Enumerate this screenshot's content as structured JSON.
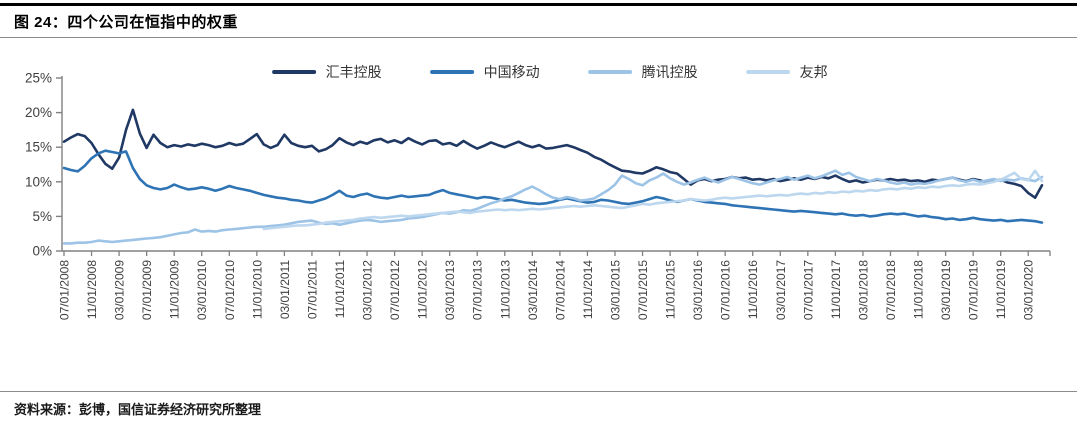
{
  "header": {
    "title": "图 24：四个公司在恒指中的权重"
  },
  "footer": {
    "source": "资料来源：彭博，国信证券经济研究所整理"
  },
  "chart_data": {
    "type": "line",
    "title": "四个公司在恒指中的权重",
    "xlabel": "",
    "ylabel": "",
    "ylim": [
      0,
      25
    ],
    "yticks": [
      0,
      5,
      10,
      15,
      20,
      25
    ],
    "ytick_labels": [
      "0%",
      "5%",
      "10%",
      "15%",
      "20%",
      "25%"
    ],
    "grid": false,
    "legend_position": "top",
    "x_frequency": "monthly",
    "x_range": [
      "07/01/2008",
      "05/01/2020"
    ],
    "x_tick_labels": [
      "07/01/2008",
      "11/01/2008",
      "03/01/2009",
      "07/01/2009",
      "11/01/2009",
      "03/01/2010",
      "07/01/2010",
      "11/01/2010",
      "03/01/2011",
      "07/01/2011",
      "11/01/2011",
      "03/01/2012",
      "07/01/2012",
      "11/01/2012",
      "03/01/2013",
      "07/01/2013",
      "11/01/2013",
      "03/01/2014",
      "07/01/2014",
      "11/01/2014",
      "03/01/2015",
      "07/01/2015",
      "11/01/2015",
      "03/01/2016",
      "07/01/2016",
      "11/01/2016",
      "03/01/2017",
      "07/01/2017",
      "11/01/2017",
      "03/01/2018",
      "07/01/2018",
      "11/01/2018",
      "03/01/2019",
      "07/01/2019",
      "11/01/2019",
      "03/01/2020"
    ],
    "x_tick_every_n_points": 4,
    "axis_color": "#808080",
    "label_color": "#404040",
    "series": [
      {
        "name": "汇丰控股",
        "color": "#1F3864",
        "values": [
          15.8,
          16.4,
          16.9,
          16.6,
          15.6,
          14.0,
          12.6,
          11.9,
          13.5,
          17.5,
          20.4,
          17.0,
          14.9,
          16.8,
          15.6,
          15.0,
          15.3,
          15.1,
          15.4,
          15.2,
          15.5,
          15.3,
          15.0,
          15.2,
          15.6,
          15.3,
          15.5,
          16.2,
          16.9,
          15.4,
          14.9,
          15.3,
          16.8,
          15.6,
          15.2,
          15.0,
          15.2,
          14.4,
          14.7,
          15.3,
          16.3,
          15.7,
          15.3,
          15.8,
          15.5,
          16.0,
          16.2,
          15.7,
          16.0,
          15.6,
          16.3,
          15.8,
          15.4,
          15.9,
          16.0,
          15.4,
          15.6,
          15.2,
          15.9,
          15.3,
          14.8,
          15.2,
          15.7,
          15.3,
          15.0,
          15.4,
          15.8,
          15.3,
          15.0,
          15.3,
          14.8,
          14.9,
          15.1,
          15.3,
          15.0,
          14.6,
          14.2,
          13.6,
          13.2,
          12.6,
          12.1,
          11.6,
          11.5,
          11.3,
          11.2,
          11.6,
          12.1,
          11.8,
          11.4,
          11.2,
          10.4,
          9.6,
          10.2,
          10.4,
          10.1,
          10.3,
          10.4,
          10.7,
          10.5,
          10.6,
          10.3,
          10.4,
          10.2,
          10.4,
          10.1,
          10.3,
          10.5,
          10.3,
          10.6,
          10.4,
          10.7,
          10.5,
          10.9,
          10.4,
          10.0,
          10.2,
          9.9,
          10.1,
          10.3,
          10.2,
          10.4,
          10.2,
          10.3,
          10.1,
          10.2,
          10.0,
          10.3,
          10.2,
          10.4,
          10.6,
          10.3,
          10.1,
          10.4,
          10.2,
          9.9,
          10.1,
          10.3,
          9.9,
          9.7,
          9.4,
          8.4,
          7.7,
          9.5
        ]
      },
      {
        "name": "中国移动",
        "color": "#2E74B5",
        "values": [
          12.0,
          11.7,
          11.5,
          12.3,
          13.4,
          14.1,
          14.5,
          14.3,
          14.1,
          14.4,
          12.0,
          10.4,
          9.5,
          9.1,
          8.9,
          9.1,
          9.6,
          9.2,
          8.9,
          9.0,
          9.2,
          9.0,
          8.7,
          9.0,
          9.4,
          9.1,
          8.9,
          8.7,
          8.4,
          8.1,
          7.9,
          7.7,
          7.6,
          7.4,
          7.3,
          7.1,
          7.0,
          7.3,
          7.6,
          8.1,
          8.7,
          8.0,
          7.8,
          8.1,
          8.3,
          7.9,
          7.7,
          7.6,
          7.8,
          8.0,
          7.8,
          7.9,
          8.0,
          8.1,
          8.5,
          8.8,
          8.4,
          8.2,
          8.0,
          7.8,
          7.6,
          7.8,
          7.7,
          7.5,
          7.3,
          7.4,
          7.2,
          7.0,
          6.9,
          6.8,
          6.9,
          7.1,
          7.4,
          7.6,
          7.4,
          7.2,
          7.0,
          7.1,
          7.4,
          7.3,
          7.1,
          6.9,
          6.8,
          7.0,
          7.2,
          7.5,
          7.8,
          7.6,
          7.3,
          7.1,
          7.3,
          7.5,
          7.3,
          7.1,
          7.0,
          6.9,
          6.8,
          6.6,
          6.5,
          6.4,
          6.3,
          6.2,
          6.1,
          6.0,
          5.9,
          5.8,
          5.7,
          5.8,
          5.7,
          5.6,
          5.5,
          5.4,
          5.3,
          5.4,
          5.2,
          5.1,
          5.2,
          5.0,
          5.1,
          5.3,
          5.4,
          5.3,
          5.4,
          5.2,
          5.0,
          5.1,
          4.9,
          4.8,
          4.6,
          4.7,
          4.5,
          4.6,
          4.8,
          4.6,
          4.5,
          4.4,
          4.5,
          4.3,
          4.4,
          4.5,
          4.4,
          4.3,
          4.1
        ]
      },
      {
        "name": "腾讯控股",
        "color": "#9DC3E6",
        "values": [
          1.1,
          1.1,
          1.2,
          1.2,
          1.3,
          1.5,
          1.4,
          1.3,
          1.4,
          1.5,
          1.6,
          1.7,
          1.8,
          1.9,
          2.0,
          2.2,
          2.4,
          2.6,
          2.7,
          3.1,
          2.8,
          2.9,
          2.8,
          3.0,
          3.1,
          3.2,
          3.3,
          3.4,
          3.5,
          3.5,
          3.6,
          3.7,
          3.8,
          4.0,
          4.2,
          4.3,
          4.4,
          4.1,
          3.9,
          4.0,
          3.8,
          4.0,
          4.2,
          4.4,
          4.5,
          4.4,
          4.2,
          4.3,
          4.4,
          4.5,
          4.7,
          4.8,
          4.9,
          5.1,
          5.3,
          5.5,
          5.4,
          5.6,
          5.9,
          5.8,
          6.1,
          6.5,
          6.9,
          7.2,
          7.6,
          7.9,
          8.4,
          8.9,
          9.3,
          8.8,
          8.2,
          7.7,
          7.5,
          7.8,
          7.6,
          7.3,
          7.4,
          7.6,
          8.2,
          8.8,
          9.6,
          10.9,
          10.4,
          9.8,
          9.5,
          10.2,
          10.6,
          11.2,
          10.5,
          10.0,
          9.6,
          9.9,
          10.3,
          10.6,
          10.2,
          9.9,
          10.3,
          10.7,
          10.4,
          10.1,
          9.8,
          9.6,
          9.9,
          10.2,
          10.4,
          10.7,
          10.3,
          10.6,
          10.9,
          10.5,
          10.8,
          11.2,
          11.6,
          11.0,
          11.3,
          10.7,
          10.4,
          10.1,
          10.4,
          10.2,
          9.9,
          9.7,
          9.9,
          9.6,
          9.8,
          9.7,
          9.9,
          10.2,
          10.4,
          10.6,
          10.2,
          10.0,
          10.3,
          10.0,
          10.2,
          10.4,
          10.1,
          10.3,
          10.2,
          10.5,
          10.3,
          10.1,
          10.7
        ]
      },
      {
        "name": "友邦",
        "color": "#BDD7EE",
        "values": [
          null,
          null,
          null,
          null,
          null,
          null,
          null,
          null,
          null,
          null,
          null,
          null,
          null,
          null,
          null,
          null,
          null,
          null,
          null,
          null,
          null,
          null,
          null,
          null,
          null,
          null,
          null,
          null,
          null,
          3.2,
          3.3,
          3.4,
          3.5,
          3.6,
          3.7,
          3.7,
          3.8,
          3.9,
          4.1,
          4.2,
          4.3,
          4.4,
          4.5,
          4.7,
          4.8,
          4.9,
          4.8,
          4.9,
          5.0,
          5.1,
          5.0,
          5.1,
          5.2,
          5.3,
          5.4,
          5.5,
          5.6,
          5.7,
          5.6,
          5.5,
          5.7,
          5.8,
          5.9,
          6.0,
          5.9,
          6.0,
          5.9,
          6.0,
          6.1,
          6.0,
          6.1,
          6.2,
          6.3,
          6.4,
          6.5,
          6.4,
          6.5,
          6.6,
          6.5,
          6.4,
          6.3,
          6.2,
          6.4,
          6.6,
          6.8,
          6.7,
          6.9,
          7.0,
          7.1,
          7.2,
          7.3,
          7.5,
          7.4,
          7.3,
          7.4,
          7.6,
          7.7,
          7.6,
          7.7,
          7.8,
          7.9,
          8.0,
          7.9,
          8.0,
          8.1,
          8.0,
          8.2,
          8.3,
          8.2,
          8.4,
          8.3,
          8.5,
          8.4,
          8.6,
          8.5,
          8.7,
          8.6,
          8.8,
          8.7,
          8.9,
          9.0,
          8.9,
          9.1,
          9.0,
          9.2,
          9.1,
          9.3,
          9.2,
          9.4,
          9.5,
          9.4,
          9.6,
          9.7,
          9.6,
          9.8,
          10.0,
          10.3,
          10.8,
          11.3,
          10.4,
          10.2,
          11.6,
          10.1
        ]
      }
    ]
  }
}
